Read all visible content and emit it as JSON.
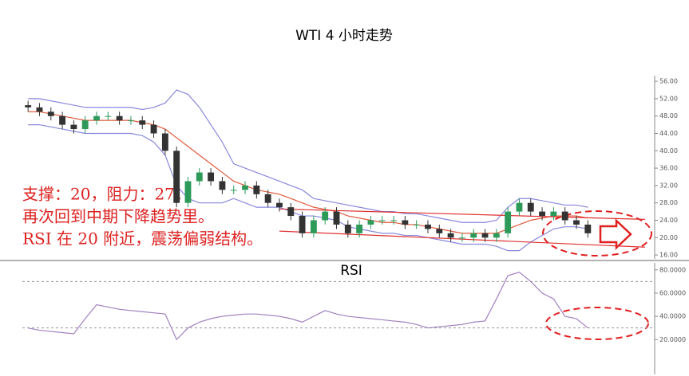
{
  "chart_data": {
    "type": "candlestick",
    "title": "WTI 4 小时走势",
    "annotations": [
      "支撑：20，阻力：27。",
      "再次回到中期下降趋势里。",
      "RSI 在 20 附近，震荡偏弱结构。"
    ],
    "xlim": [
      -0.5,
      54.5
    ],
    "ylim": [
      15.1,
      57.3
    ],
    "yticks": [
      {
        "value": 16,
        "label": "16.00"
      },
      {
        "value": 20,
        "label": "20.00"
      },
      {
        "value": 24,
        "label": "24.00"
      },
      {
        "value": 28,
        "label": "28.00"
      },
      {
        "value": 32,
        "label": "32.00"
      },
      {
        "value": 36,
        "label": "36.00"
      },
      {
        "value": 40,
        "label": "40.00"
      },
      {
        "value": 44,
        "label": "44.00"
      },
      {
        "value": 48,
        "label": "48.00"
      },
      {
        "value": 52,
        "label": "52.00"
      },
      {
        "value": 56,
        "label": "56.00"
      }
    ],
    "colors": {
      "up": "#2e9a5a",
      "down": "#333333"
    },
    "open": [
      50.5,
      50,
      49,
      48,
      46,
      45,
      47,
      48,
      48,
      47,
      47,
      46,
      44,
      40,
      28,
      33,
      35,
      33,
      31,
      31,
      32,
      30,
      28,
      27,
      25,
      21,
      24,
      26,
      23,
      21,
      23,
      24,
      24,
      24,
      23,
      23,
      22,
      21,
      20,
      20,
      21,
      20,
      21,
      26,
      28,
      26,
      25,
      26,
      24,
      23
    ],
    "high": [
      51.5,
      51,
      50,
      49,
      47,
      48,
      49,
      49,
      49,
      48,
      48,
      47,
      45,
      41,
      34,
      36,
      36,
      34,
      32,
      33,
      33,
      31,
      29,
      28,
      26,
      25,
      27,
      27,
      24,
      24,
      25,
      25,
      25,
      25,
      24,
      24,
      23,
      22,
      21,
      22,
      22,
      22,
      27,
      29,
      29,
      27,
      27,
      27,
      25,
      24
    ],
    "low": [
      49,
      48,
      47,
      45,
      44,
      44,
      46,
      47,
      46,
      46,
      45,
      43,
      39,
      27,
      27,
      32,
      32,
      30,
      30,
      30,
      29,
      27,
      26,
      24,
      20,
      20,
      23,
      22,
      20,
      20,
      22,
      23,
      23,
      22,
      22,
      21,
      20,
      19,
      19,
      19,
      19,
      19,
      20,
      25,
      25,
      24,
      24,
      23,
      22,
      20
    ],
    "close": [
      50,
      49,
      48,
      46,
      45,
      47,
      48,
      48,
      47,
      47,
      46,
      44,
      40,
      28,
      33,
      35,
      33,
      31,
      31,
      32,
      30,
      28,
      27,
      25,
      21,
      24,
      26,
      23,
      21,
      23,
      24,
      24,
      24,
      23,
      23,
      22,
      21,
      20,
      20,
      21,
      20,
      21,
      26,
      28,
      26,
      25,
      26,
      24,
      23,
      21
    ],
    "series": [
      {
        "name": "Upper",
        "color": "#8888dd",
        "values": [
          52,
          52,
          51.5,
          51,
          50.5,
          50,
          50,
          50,
          50,
          50,
          49.5,
          50,
          51,
          54,
          53,
          50,
          46,
          42,
          37,
          36,
          35,
          34,
          33,
          32,
          31,
          29,
          28.5,
          28,
          27.5,
          27,
          26.5,
          26,
          26,
          25.5,
          25.5,
          25,
          24.5,
          24,
          23.5,
          23.5,
          23.5,
          24,
          27,
          29,
          29,
          28.5,
          28,
          27.5,
          27.5,
          27
        ]
      },
      {
        "name": "Middle",
        "color": "#e05a3a",
        "values": [
          49,
          49,
          48.5,
          48,
          47.5,
          47,
          47,
          47,
          47,
          47,
          46.5,
          46,
          45,
          43,
          41,
          39,
          37,
          35,
          33,
          32,
          31,
          30.5,
          30,
          29,
          28,
          27,
          26.5,
          26,
          25,
          24.5,
          24,
          23.5,
          23.5,
          23,
          23,
          22.5,
          22,
          21.5,
          21,
          21,
          21,
          21,
          22,
          23,
          24,
          24.5,
          25,
          25,
          25,
          24.5
        ]
      },
      {
        "name": "Lower",
        "color": "#8888dd",
        "values": [
          46,
          46,
          45.5,
          45,
          44.5,
          44,
          44,
          44,
          44,
          44,
          43.5,
          42,
          39,
          32,
          29,
          28,
          28,
          28,
          29,
          28,
          27,
          27,
          27,
          26,
          25,
          25,
          24.5,
          24,
          22.5,
          22,
          21.5,
          21,
          21,
          20.5,
          20.5,
          20,
          19.5,
          19,
          18.5,
          18.5,
          18.5,
          18,
          17,
          17,
          19,
          20.5,
          22,
          22.5,
          22.5,
          22
        ]
      }
    ],
    "trendlines": [
      {
        "color": "#e03030",
        "x": [
          22,
          54
        ],
        "y": [
          26.6,
          24.2
        ]
      },
      {
        "color": "#e03030",
        "x": [
          22,
          54
        ],
        "y": [
          21.5,
          17.8
        ]
      }
    ],
    "rsi": {
      "title": "RSI",
      "color": "#a080c0",
      "values": [
        30,
        28,
        27,
        26,
        25,
        38,
        50,
        48,
        46,
        45,
        44,
        43,
        42,
        20,
        30,
        35,
        38,
        40,
        41,
        42,
        42,
        41,
        40,
        38,
        35,
        40,
        45,
        42,
        40,
        39,
        38,
        37,
        36,
        35,
        33,
        30,
        31,
        32,
        33,
        35,
        36,
        55,
        75,
        78,
        70,
        60,
        55,
        40,
        38,
        30
      ],
      "ylim": [
        -10,
        86
      ],
      "yticks": [
        {
          "value": 20,
          "label": "20.0000"
        },
        {
          "value": 40,
          "label": "40.0000"
        },
        {
          "value": 60,
          "label": "60.0000"
        },
        {
          "value": 80,
          "label": "80.0000"
        }
      ],
      "levels": [
        30,
        70
      ]
    }
  }
}
